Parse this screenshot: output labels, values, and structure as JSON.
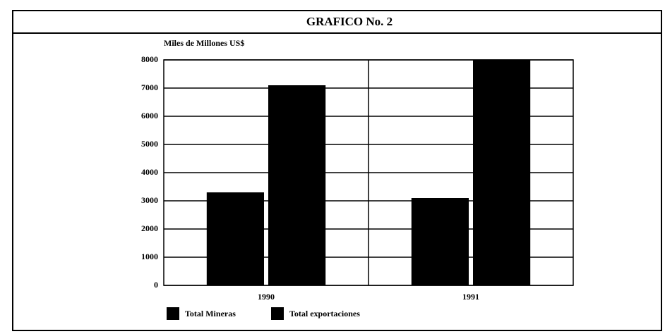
{
  "chart_data": {
    "type": "bar",
    "title": "GRAFICO No. 2",
    "y_label": "Miles de Millones US$",
    "categories": [
      "1990",
      "1991"
    ],
    "series": [
      {
        "name": "Total Mineras",
        "color": "#000000",
        "values": [
          3300,
          3100
        ]
      },
      {
        "name": "Total exportaciones",
        "color": "#000000",
        "values": [
          7100,
          8000
        ]
      }
    ],
    "ylim": [
      0,
      8000
    ],
    "yticks": [
      0,
      1000,
      2000,
      3000,
      4000,
      5000,
      6000,
      7000,
      8000
    ],
    "grid": true
  }
}
